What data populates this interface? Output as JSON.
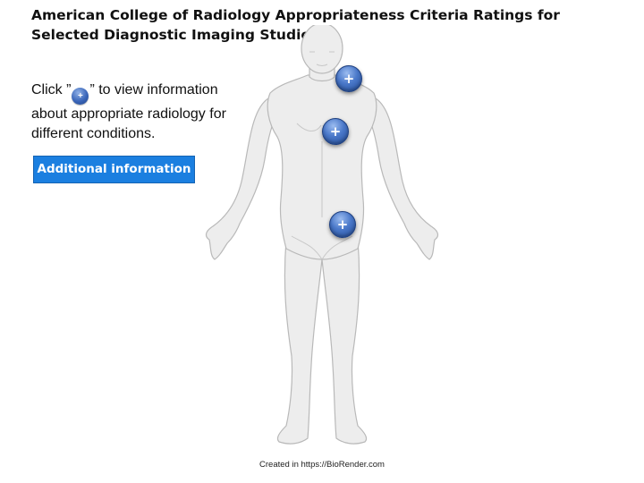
{
  "page": {
    "title": "American College of Radiology Appropriateness Criteria Ratings for Selected Diagnostic Imaging Studies"
  },
  "instructions": {
    "prefix": "Click  ”",
    "icon_glyph": "+",
    "suffix": "” to view information about appropriate radiology for different conditions."
  },
  "additional_info_button": {
    "label": "Additional information"
  },
  "hotspots": [
    {
      "name": "neck",
      "glyph": "+"
    },
    {
      "name": "chest",
      "glyph": "+"
    },
    {
      "name": "abdomen",
      "glyph": "+"
    }
  ],
  "credit": {
    "text": "Created in  https://BioRender.com"
  },
  "colors": {
    "button_bg": "#1b7fe0",
    "hotspot_blue": "#3a66b9",
    "body_fill": "#ededed",
    "body_stroke": "#b9b9b9"
  },
  "icons": {
    "hotspot": "plus-circle-icon",
    "figure": "human-body-illustration"
  }
}
